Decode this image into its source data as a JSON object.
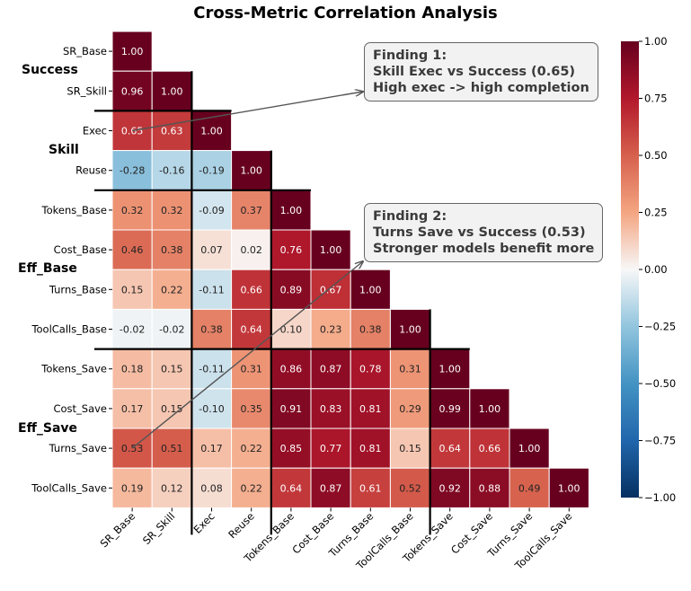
{
  "chart_data": {
    "type": "heatmap",
    "title": "Cross-Metric Correlation Analysis",
    "labels": [
      "SR_Base",
      "SR_Skill",
      "Exec",
      "Reuse",
      "Tokens_Base",
      "Cost_Base",
      "Turns_Base",
      "ToolCalls_Base",
      "Tokens_Save",
      "Cost_Save",
      "Turns_Save",
      "ToolCalls_Save"
    ],
    "matrix": [
      [
        1.0
      ],
      [
        0.96,
        1.0
      ],
      [
        0.65,
        0.63,
        1.0
      ],
      [
        -0.28,
        -0.16,
        -0.19,
        1.0
      ],
      [
        0.32,
        0.32,
        -0.09,
        0.37,
        1.0
      ],
      [
        0.46,
        0.38,
        0.07,
        0.02,
        0.76,
        1.0
      ],
      [
        0.15,
        0.22,
        -0.11,
        0.66,
        0.89,
        0.67,
        1.0
      ],
      [
        -0.02,
        -0.02,
        0.38,
        0.64,
        0.1,
        0.23,
        0.38,
        1.0
      ],
      [
        0.18,
        0.15,
        -0.11,
        0.31,
        0.86,
        0.87,
        0.78,
        0.31,
        1.0
      ],
      [
        0.17,
        0.15,
        -0.1,
        0.35,
        0.91,
        0.83,
        0.81,
        0.29,
        0.99,
        1.0
      ],
      [
        0.53,
        0.51,
        0.17,
        0.22,
        0.85,
        0.77,
        0.81,
        0.15,
        0.64,
        0.66,
        1.0
      ],
      [
        0.19,
        0.12,
        0.08,
        0.22,
        0.64,
        0.87,
        0.61,
        0.52,
        0.92,
        0.88,
        0.49,
        1.0
      ]
    ],
    "value_range": [
      -1.0,
      1.0
    ],
    "colormap": "RdBu_r",
    "colorbar_ticks": [
      "1.00",
      "0.75",
      "0.50",
      "0.25",
      "0.00",
      "−0.25",
      "−0.50",
      "−0.75",
      "−1.00"
    ],
    "groups": [
      {
        "name": "Success",
        "color": "#2e7d32",
        "rows": [
          0,
          1
        ]
      },
      {
        "name": "Skill",
        "color": "#1f5fbf",
        "rows": [
          2,
          3
        ]
      },
      {
        "name": "Eff_Base",
        "color": "#5b2c8f",
        "rows": [
          4,
          7
        ]
      },
      {
        "name": "Eff_Save",
        "color": "#e04a1f",
        "rows": [
          8,
          11
        ]
      }
    ],
    "annotations": [
      {
        "lines": [
          "Finding 1:",
          "Skill Exec vs Success (0.65)",
          "High exec -> high completion"
        ],
        "points_to": [
          2,
          0
        ]
      },
      {
        "lines": [
          "Finding 2:",
          "Turns Save vs Success (0.53)",
          "Stronger models benefit more"
        ],
        "points_to": [
          10,
          0
        ]
      }
    ]
  }
}
